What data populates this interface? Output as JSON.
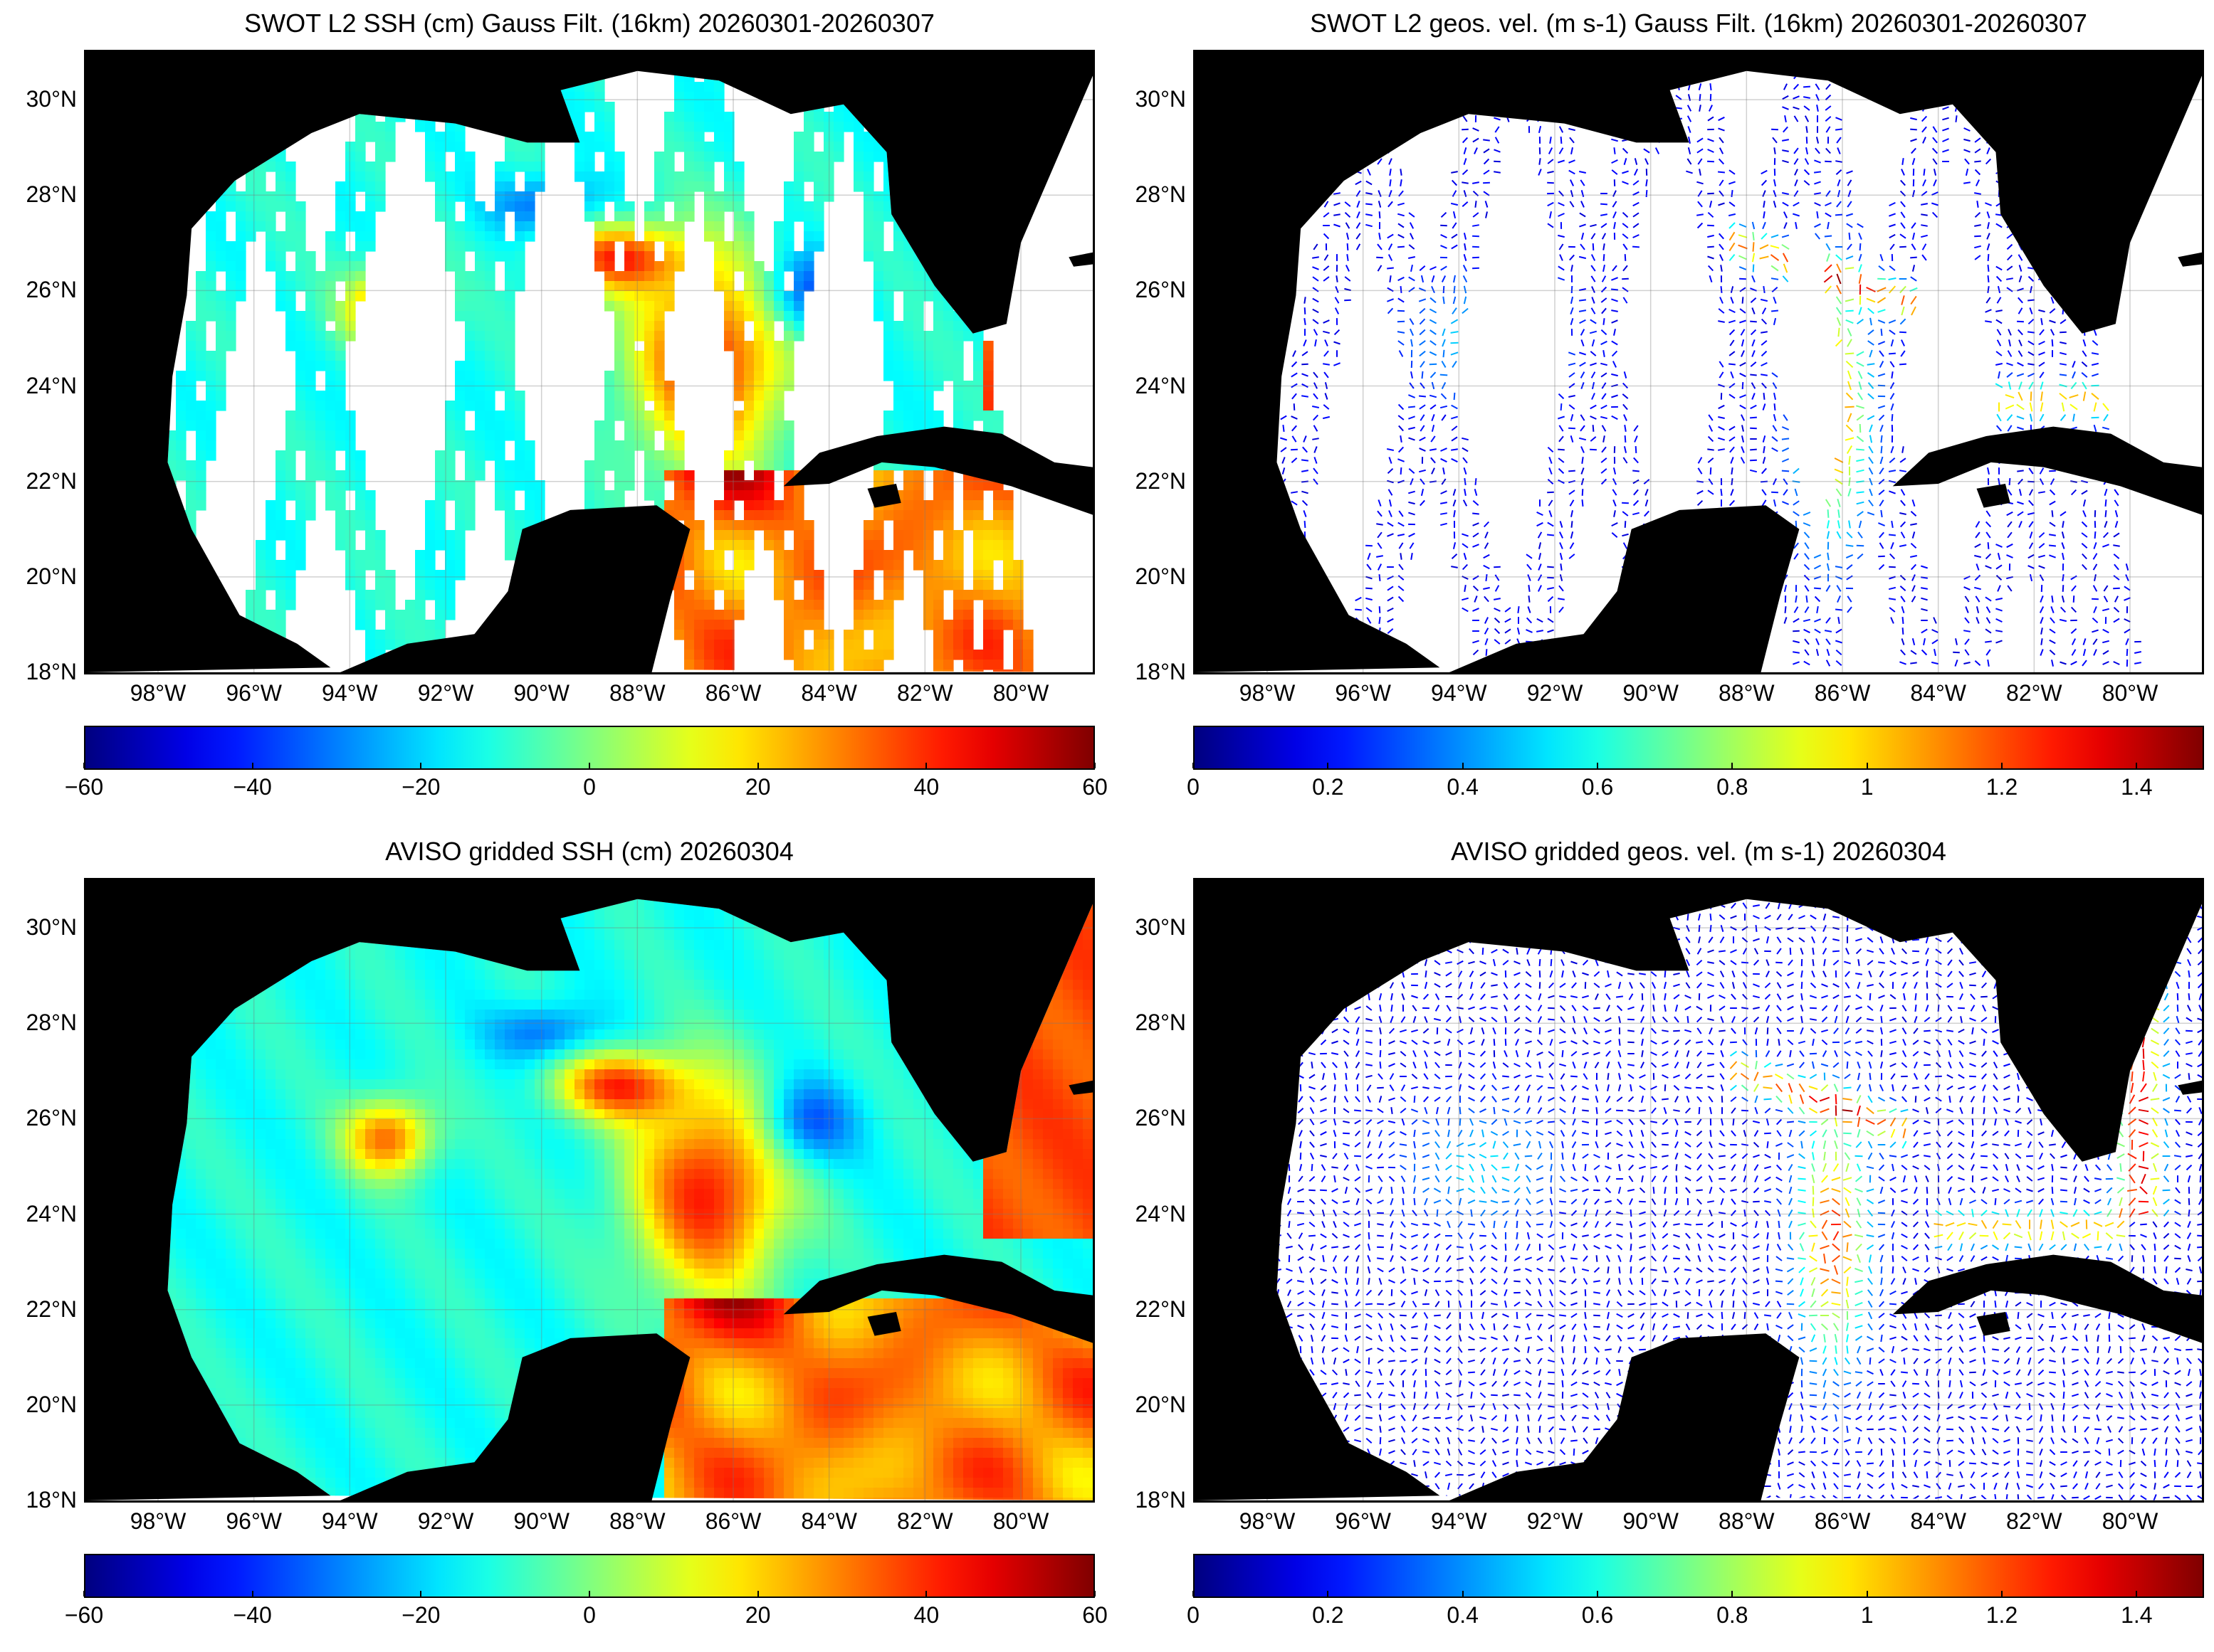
{
  "panels": [
    {
      "id": "swot-ssh",
      "title": "SWOT L2 SSH (cm) Gauss Filt. (16km) 20260301-20260307",
      "kind": "swaths-field",
      "colorbar": {
        "ticks": [
          "−60",
          "−40",
          "−20",
          "0",
          "20",
          "40",
          "60"
        ],
        "range": [
          -60,
          60
        ]
      }
    },
    {
      "id": "swot-vel",
      "title": "SWOT L2 geos. vel. (m s-1) Gauss Filt. (16km) 20260301-20260307",
      "kind": "swaths-vectors",
      "colorbar": {
        "ticks": [
          "0",
          "0.2",
          "0.4",
          "0.6",
          "0.8",
          "1",
          "1.2",
          "1.4"
        ],
        "range": [
          0,
          1.5
        ]
      }
    },
    {
      "id": "aviso-ssh",
      "title": "AVISO gridded SSH (cm) 20260304",
      "kind": "full-field",
      "colorbar": {
        "ticks": [
          "−60",
          "−40",
          "−20",
          "0",
          "20",
          "40",
          "60"
        ],
        "range": [
          -60,
          60
        ]
      }
    },
    {
      "id": "aviso-vel",
      "title": "AVISO gridded geos. vel. (m s-1)  20260304",
      "kind": "full-vectors",
      "colorbar": {
        "ticks": [
          "0",
          "0.2",
          "0.4",
          "0.6",
          "0.8",
          "1",
          "1.2",
          "1.4"
        ],
        "range": [
          0,
          1.5
        ]
      }
    }
  ],
  "lat_labels": [
    "30°N",
    "28°N",
    "26°N",
    "24°N",
    "22°N",
    "20°N",
    "18°N"
  ],
  "lon_labels": [
    "98°W",
    "96°W",
    "94°W",
    "92°W",
    "90°W",
    "88°W",
    "86°W",
    "84°W",
    "82°W",
    "80°W"
  ],
  "lat_values": [
    30,
    28,
    26,
    24,
    22,
    20,
    18
  ],
  "lon_values": [
    -98,
    -96,
    -94,
    -92,
    -90,
    -88,
    -86,
    -84,
    -82,
    -80
  ],
  "extent": {
    "lon": [
      -99.5,
      -78.5
    ],
    "lat": [
      18,
      31
    ]
  },
  "colormap": "jet",
  "land_color": "#000000",
  "nodata_color": "#ffffff"
}
